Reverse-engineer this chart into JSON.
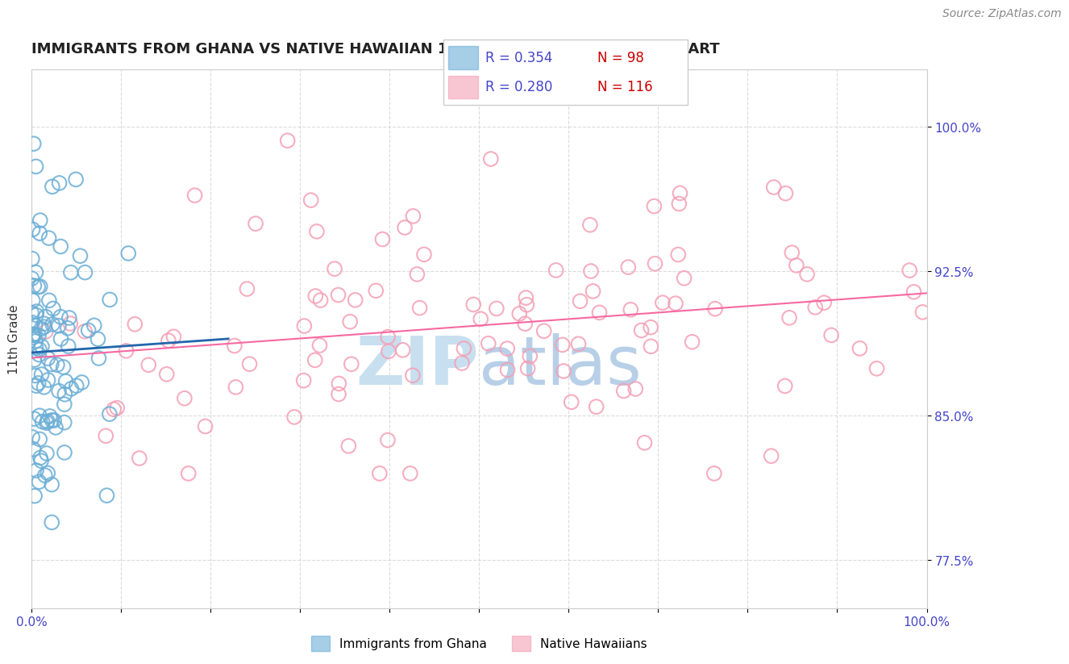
{
  "title": "IMMIGRANTS FROM GHANA VS NATIVE HAWAIIAN 11TH GRADE CORRELATION CHART",
  "source": "Source: ZipAtlas.com",
  "ylabel": "11th Grade",
  "xlim": [
    0.0,
    1.0
  ],
  "ylim": [
    0.75,
    1.03
  ],
  "yticks": [
    0.775,
    0.85,
    0.925,
    1.0
  ],
  "ytick_labels": [
    "77.5%",
    "85.0%",
    "92.5%",
    "100.0%"
  ],
  "ghana_R": 0.354,
  "ghana_N": 98,
  "hawaiian_R": 0.28,
  "hawaiian_N": 116,
  "ghana_color": "#6baed6",
  "hawaiian_color": "#f4a0b5",
  "ghana_line_color": "#2166ac",
  "hawaiian_line_color": "#f768a1",
  "ghana_seed": 42,
  "hawaiian_seed": 123,
  "watermark_zip_color": "#c8dff0",
  "watermark_atlas_color": "#b8cfe8",
  "background_color": "#ffffff",
  "grid_color": "#cccccc",
  "tick_color": "#4444cc",
  "title_color": "#222222",
  "legend_R_color": "#4444cc",
  "legend_N_color": "#cc0000"
}
